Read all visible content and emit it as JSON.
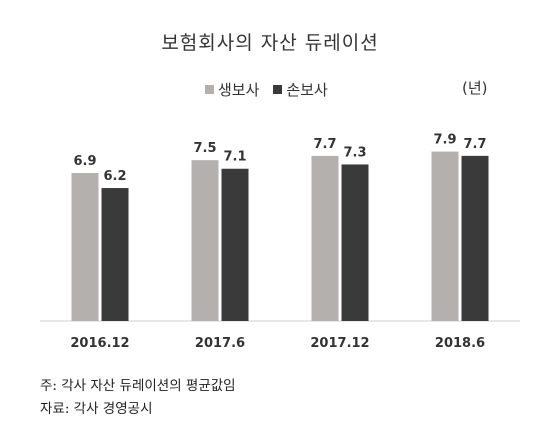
{
  "chart_data": {
    "type": "bar",
    "title": "보험회사의 자산 듀레이션",
    "unit": "(년)",
    "categories": [
      "2016.12",
      "2017.6",
      "2017.12",
      "2018.6"
    ],
    "series": [
      {
        "name": "생보사",
        "values": [
          6.9,
          7.5,
          7.7,
          7.9
        ],
        "color": "#b3b0ae"
      },
      {
        "name": "손보사",
        "values": [
          6.2,
          7.1,
          7.3,
          7.7
        ],
        "color": "#3a3a3a"
      }
    ],
    "ylim": [
      0,
      9
    ],
    "grid": false,
    "legend": "top"
  },
  "notes": {
    "note1": "주: 각사 자산 듀레이션의 평균값임",
    "note2": "자료: 각사 경영공시"
  }
}
